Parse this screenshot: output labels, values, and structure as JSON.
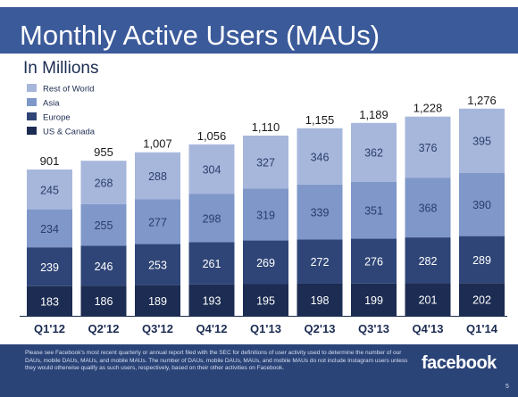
{
  "header": {
    "title": "Monthly Active Users (MAUs)",
    "subtitle": "In Millions"
  },
  "footer": {
    "note": "Please see Facebook's most recent quarterly or annual report filed with the SEC for definitions of user activity used to determine the number of our DAUs, mobile DAUs, MAUs, and mobile MAUs. The number of DAUs, mobile DAUs, MAUs, and mobile MAUs do not include Instagram users unless they would otherwise qualify as such users, respectively, based on their other activities on Facebook.",
    "logo_text": "facebook",
    "page_number": "5"
  },
  "colors": {
    "us_canada": "#1c2c52",
    "europe": "#2f4577",
    "asia": "#7f97c9",
    "rest_of_world": "#a7b7dc",
    "title_bar": "#3b5a9a",
    "footer": "#2b4478"
  },
  "chart_data": {
    "type": "bar",
    "stacked": true,
    "categories": [
      "Q1'12",
      "Q2'12",
      "Q3'12",
      "Q4'12",
      "Q1'13",
      "Q2'13",
      "Q3'13",
      "Q4'13",
      "Q1'14"
    ],
    "series": [
      {
        "name": "US & Canada",
        "values": [
          183,
          186,
          189,
          193,
          195,
          198,
          199,
          201,
          202
        ]
      },
      {
        "name": "Europe",
        "values": [
          239,
          246,
          253,
          261,
          269,
          272,
          276,
          282,
          289
        ]
      },
      {
        "name": "Asia",
        "values": [
          234,
          255,
          277,
          298,
          319,
          339,
          351,
          368,
          390
        ]
      },
      {
        "name": "Rest of World",
        "values": [
          245,
          268,
          288,
          304,
          327,
          346,
          362,
          376,
          395
        ]
      }
    ],
    "totals": [
      "901",
      "955",
      "1,007",
      "1,056",
      "1,110",
      "1,155",
      "1,189",
      "1,228",
      "1,276"
    ],
    "legend": [
      "Rest of World",
      "Asia",
      "Europe",
      "US & Canada"
    ],
    "legend_position": "top-left",
    "title": "Monthly Active Users (MAUs)",
    "subtitle": "In Millions",
    "grid": false
  }
}
